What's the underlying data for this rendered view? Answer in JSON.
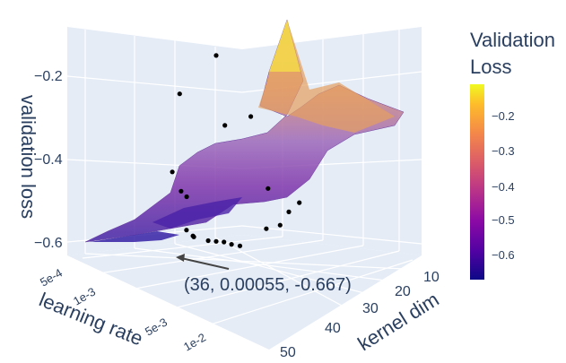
{
  "chart_data": {
    "type": "surface3d",
    "title": "",
    "axes": {
      "x": {
        "label": "kernel dim",
        "ticks": [
          "10",
          "20",
          "30",
          "40",
          "50"
        ],
        "range": [
          5,
          55
        ]
      },
      "y": {
        "label": "learning rate",
        "ticks": [
          "5e-4",
          "1e-3",
          "5e-3",
          "1e-2"
        ],
        "scale": "log",
        "range": [
          0.0004,
          0.015
        ]
      },
      "z": {
        "label": "validation loss",
        "ticks": [
          "−0.2",
          "−0.4",
          "−0.6"
        ],
        "range": [
          -0.65,
          -0.08
        ]
      }
    },
    "colorbar": {
      "title_line1": "Validation",
      "title_line2": "Loss",
      "ticks": [
        "−0.2",
        "−0.3",
        "−0.4",
        "−0.5",
        "−0.6"
      ],
      "colorscale": [
        "#0d0887",
        "#5302a3",
        "#8b0aa5",
        "#b83289",
        "#db5c68",
        "#f48849",
        "#febd2a",
        "#f0f921"
      ],
      "range": [
        -0.667,
        -0.15
      ]
    },
    "points": [
      {
        "x": 36,
        "y": 0.00055,
        "z": -0.667
      },
      {
        "x": 34,
        "y": 0.0006,
        "z": -0.66
      },
      {
        "x": 32,
        "y": 0.0007,
        "z": -0.65
      },
      {
        "x": 30,
        "y": 0.0008,
        "z": -0.645
      },
      {
        "x": 28,
        "y": 0.0009,
        "z": -0.64
      },
      {
        "x": 26,
        "y": 0.00065,
        "z": -0.63
      },
      {
        "x": 24,
        "y": 0.0012,
        "z": -0.62
      },
      {
        "x": 22,
        "y": 0.0015,
        "z": -0.6
      },
      {
        "x": 40,
        "y": 0.0009,
        "z": -0.62
      },
      {
        "x": 42,
        "y": 0.0012,
        "z": -0.61
      },
      {
        "x": 45,
        "y": 0.0008,
        "z": -0.58
      },
      {
        "x": 48,
        "y": 0.0006,
        "z": -0.56
      },
      {
        "x": 38,
        "y": 0.002,
        "z": -0.5
      },
      {
        "x": 20,
        "y": 0.003,
        "z": -0.5
      },
      {
        "x": 18,
        "y": 0.004,
        "z": -0.48
      },
      {
        "x": 15,
        "y": 0.006,
        "z": -0.42
      },
      {
        "x": 25,
        "y": 0.008,
        "z": -0.3
      },
      {
        "x": 30,
        "y": 0.009,
        "z": -0.28
      },
      {
        "x": 15,
        "y": 0.01,
        "z": -0.2
      },
      {
        "x": 22,
        "y": 0.012,
        "z": -0.1
      }
    ],
    "annotation": {
      "text": "(36, 0.00055, -0.667)",
      "x": 36,
      "y": 0.00055,
      "z": -0.667
    },
    "grid": true
  }
}
